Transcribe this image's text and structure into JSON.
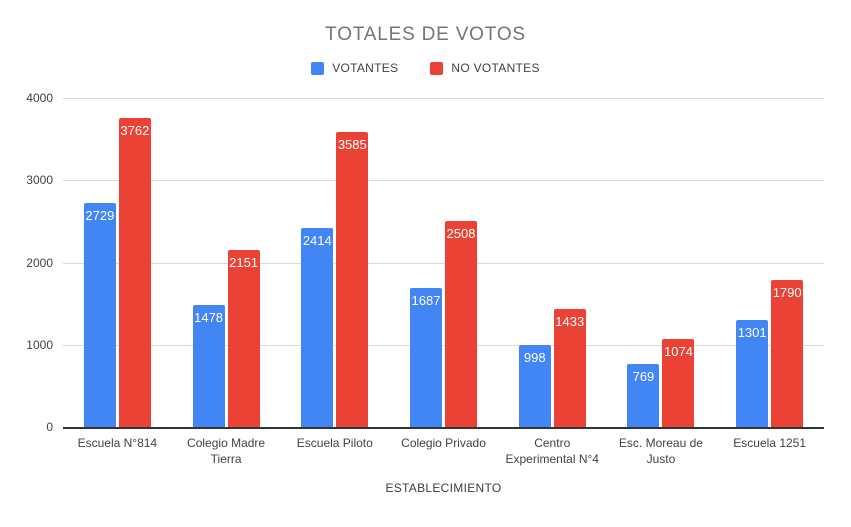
{
  "chart_data": {
    "type": "bar",
    "title": "TOTALES DE VOTOS",
    "xlabel": "ESTABLECIMIENTO",
    "ylabel": "",
    "categories": [
      "Escuela N°814",
      "Colegio Madre Tierra",
      "Escuela Piloto",
      "Colegio Privado",
      "Centro Experimental N°4",
      "Esc. Moreau de Justo",
      "Escuela 1251"
    ],
    "series": [
      {
        "name": "VOTANTES",
        "color": "#4285F4",
        "values": [
          2729,
          1478,
          2414,
          1687,
          998,
          769,
          1301
        ]
      },
      {
        "name": "NO VOTANTES",
        "color": "#EA4335",
        "values": [
          3762,
          2151,
          3585,
          2508,
          1433,
          1074,
          1790
        ]
      }
    ],
    "ylim": [
      0,
      4000
    ],
    "yticks": [
      0,
      1000,
      2000,
      3000,
      4000
    ],
    "grid": true,
    "legend_position": "top",
    "bar_labels": true
  },
  "colors": {
    "title_text": "#757575",
    "axis_text": "#424242",
    "gridline": "#dadada",
    "axis_line": "#333333",
    "bar_label_text": "#ffffff",
    "background": "#ffffff"
  }
}
